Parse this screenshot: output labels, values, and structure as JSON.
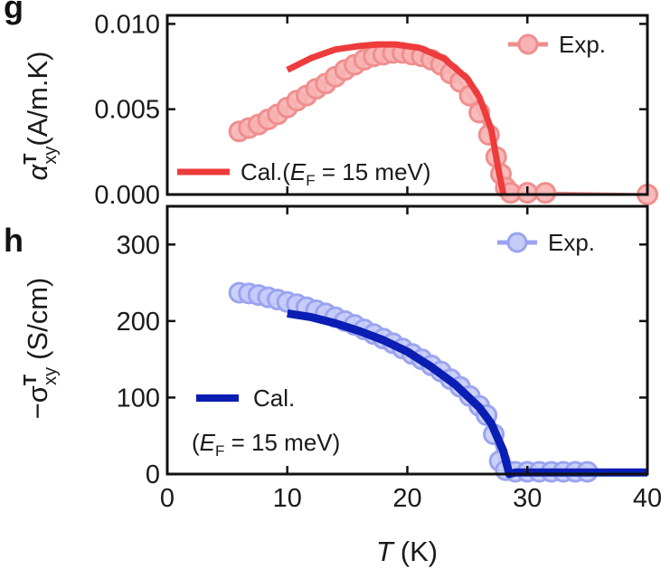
{
  "colors": {
    "exp_top_fill": "#f7b3b3",
    "exp_top_stroke": "#f08e8e",
    "cal_top": "#ee3b3b",
    "exp_bot_fill": "#c6ccf7",
    "exp_bot_stroke": "#9aa4f0",
    "cal_bot": "#0a1eb4",
    "axis": "#111111"
  },
  "panels": {
    "top_label": "g",
    "bottom_label": "h"
  },
  "chart_data": [
    {
      "type": "scatter",
      "panel": "g",
      "title": "",
      "ylabel": "α",
      "ylabel_super": "T",
      "ylabel_sub": "xy",
      "ylabel_unit": "(A/m.K)",
      "xlim": [
        0,
        40
      ],
      "ylim": [
        0,
        0.0105
      ],
      "yticks": [
        0,
        0.005,
        0.01
      ],
      "ytick_labels": [
        "0.000",
        "0.005",
        "0.010"
      ],
      "legend_position": "top-right",
      "series": [
        {
          "name": "Exp.",
          "kind": "markers+line",
          "x": [
            6,
            6.8,
            7.6,
            8.4,
            9.2,
            10,
            10.8,
            11.6,
            12.4,
            13.2,
            14,
            14.8,
            15.6,
            16.4,
            17.2,
            18,
            18.8,
            19.6,
            20.4,
            21.2,
            22,
            22.8,
            23.6,
            24.4,
            25.2,
            26,
            26.8,
            27.4,
            27.8,
            28.2,
            28.6,
            30,
            31.5,
            40
          ],
          "y": [
            0.0037,
            0.0039,
            0.0041,
            0.0044,
            0.0047,
            0.0051,
            0.0055,
            0.0058,
            0.0062,
            0.0065,
            0.0069,
            0.0073,
            0.0076,
            0.0079,
            0.0081,
            0.0082,
            0.0083,
            0.0083,
            0.0082,
            0.0081,
            0.0079,
            0.0076,
            0.0071,
            0.0066,
            0.0058,
            0.0048,
            0.0035,
            0.0022,
            0.0012,
            0.0004,
            0.0001,
            0.0001,
            0.0001,
            0
          ]
        },
        {
          "name": "Cal.",
          "legend_label_prefix": "Cal.(",
          "legend_label_var": "E",
          "legend_label_sub": "F",
          "legend_label_rest": " = 15 meV)",
          "kind": "line",
          "x": [
            10,
            12,
            14,
            16,
            17.5,
            19,
            21,
            23,
            25,
            26,
            27,
            27.5,
            28
          ],
          "y": [
            0.0073,
            0.008,
            0.0085,
            0.0087,
            0.0088,
            0.0088,
            0.0086,
            0.008,
            0.0068,
            0.0057,
            0.0038,
            0.0018,
            0.0
          ]
        }
      ]
    },
    {
      "type": "scatter",
      "panel": "h",
      "title": "",
      "ylabel_prefix": "−σ",
      "ylabel_super": "T",
      "ylabel_sub": "xy",
      "ylabel_unit": "(S/cm)",
      "xlabel_var": "T",
      "xlabel_unit": "(K)",
      "xlim": [
        0,
        40
      ],
      "ylim": [
        0,
        350
      ],
      "xticks": [
        0,
        10,
        20,
        30,
        40
      ],
      "xtick_labels": [
        "0",
        "10",
        "20",
        "30",
        "40"
      ],
      "yticks": [
        0,
        100,
        200,
        300
      ],
      "ytick_labels": [
        "0",
        "100",
        "200",
        "300"
      ],
      "legend_position": "top-right",
      "series": [
        {
          "name": "Exp.",
          "kind": "markers+line",
          "x": [
            6,
            6.8,
            7.6,
            8.4,
            9.2,
            10,
            10.8,
            11.6,
            12.4,
            13.2,
            14,
            14.8,
            15.6,
            16.4,
            17.2,
            18,
            18.8,
            19.6,
            20.4,
            21.2,
            22,
            22.8,
            23.6,
            24.4,
            25.2,
            26,
            26.6,
            27.2,
            27.7,
            28.2,
            29,
            30,
            31,
            32,
            33,
            34,
            35
          ],
          "y": [
            237,
            236,
            234,
            231,
            228,
            225,
            222,
            218,
            214,
            210,
            205,
            200,
            195,
            189,
            183,
            177,
            171,
            164,
            157,
            150,
            142,
            134,
            124,
            114,
            102,
            89,
            77,
            52,
            17,
            5,
            3,
            3,
            3,
            3,
            3,
            3,
            3
          ]
        },
        {
          "name": "Cal.",
          "legend_line2_open": "(",
          "legend_line2_var": "E",
          "legend_line2_sub": "F",
          "legend_line2_rest": " = 15 meV)",
          "kind": "line",
          "x": [
            10,
            12,
            14,
            16,
            18,
            20,
            22,
            24,
            26,
            27,
            28,
            28.5,
            29,
            40
          ],
          "y": [
            210,
            205,
            197,
            187,
            175,
            160,
            140,
            117,
            87,
            66,
            30,
            0,
            2,
            2
          ]
        }
      ]
    }
  ]
}
